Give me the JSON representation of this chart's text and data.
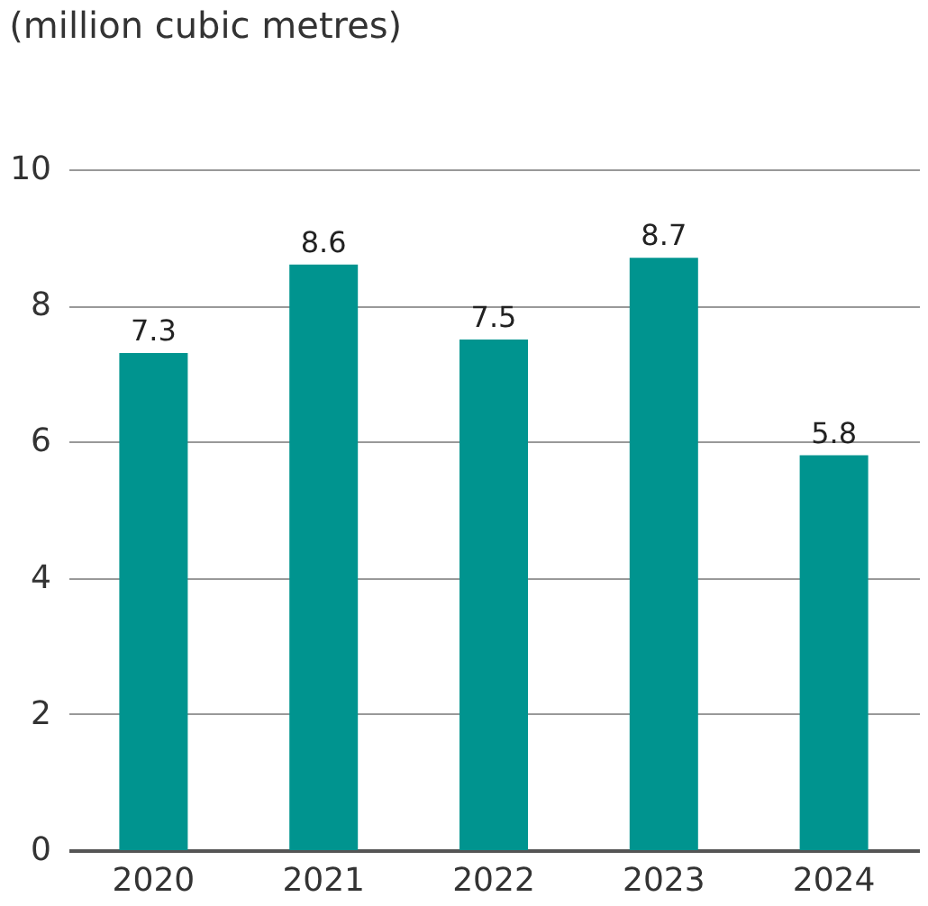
{
  "chart_data": {
    "type": "bar",
    "title": "(million cubic metres)",
    "categories": [
      "2020",
      "2021",
      "2022",
      "2023",
      "2024"
    ],
    "values": [
      7.3,
      8.6,
      7.5,
      8.7,
      5.8
    ],
    "color": "#00948f",
    "ylim": [
      0,
      10
    ],
    "yticks": [
      0,
      2,
      4,
      6,
      8,
      10
    ],
    "grid": "y",
    "data_labels": true
  }
}
